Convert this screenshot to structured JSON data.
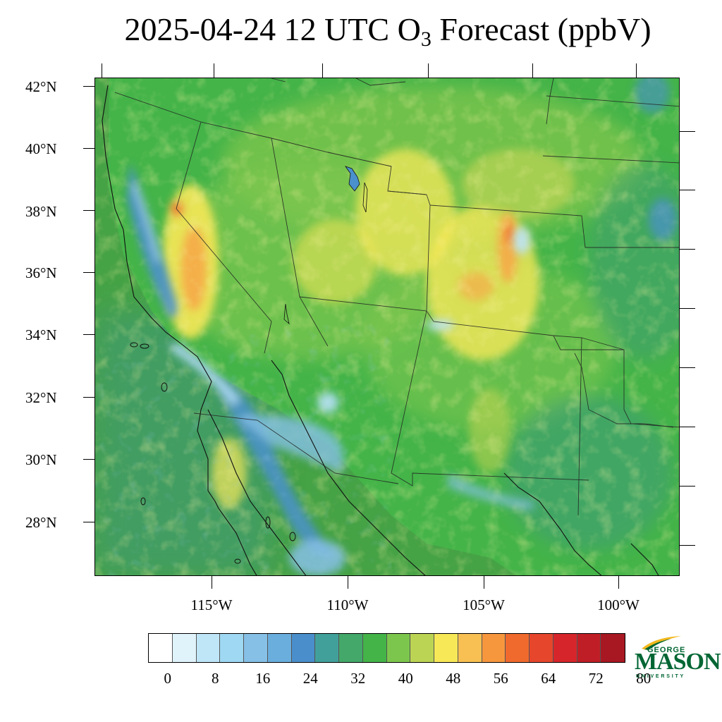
{
  "title": {
    "text_prefix": "2025-04-24 12 UTC O",
    "subscript": "3",
    "text_suffix": " Forecast (ppbV)"
  },
  "map": {
    "lat_labels": [
      "42°N",
      "40°N",
      "38°N",
      "36°N",
      "34°N",
      "32°N",
      "30°N",
      "28°N"
    ],
    "lon_labels": [
      "115°W",
      "110°W",
      "105°W",
      "100°W"
    ],
    "field_colors": {
      "ocean": "#45a245",
      "ocean_teal": "#3f9a7a",
      "valley_blue": "#4a90cc",
      "very_low": "#b9e2f7",
      "low_green": "#3db24a",
      "mid_green": "#7ec652",
      "high_yellow": "#f6e858",
      "higher_orange": "#f6a848",
      "peak_red": "#ee6a32"
    }
  },
  "colorbar": {
    "colors": [
      "#ffffff",
      "#e0f3fb",
      "#bfe6f7",
      "#9fd8f2",
      "#86c0e6",
      "#6aaedd",
      "#4a8fcc",
      "#42a09a",
      "#44a86a",
      "#44b449",
      "#7dc64e",
      "#bcd454",
      "#f7e858",
      "#f8c052",
      "#f6973e",
      "#f06a2e",
      "#e6462c",
      "#d6262c",
      "#c01e26",
      "#a81822"
    ],
    "labels": [
      "0",
      "8",
      "16",
      "24",
      "32",
      "40",
      "48",
      "56",
      "64",
      "72",
      "80"
    ]
  },
  "logo": {
    "line1": "GEORGE",
    "line2": "MASON",
    "line3": "UNIVERSITY",
    "color": "#006633",
    "accent": "#f2b81d"
  }
}
